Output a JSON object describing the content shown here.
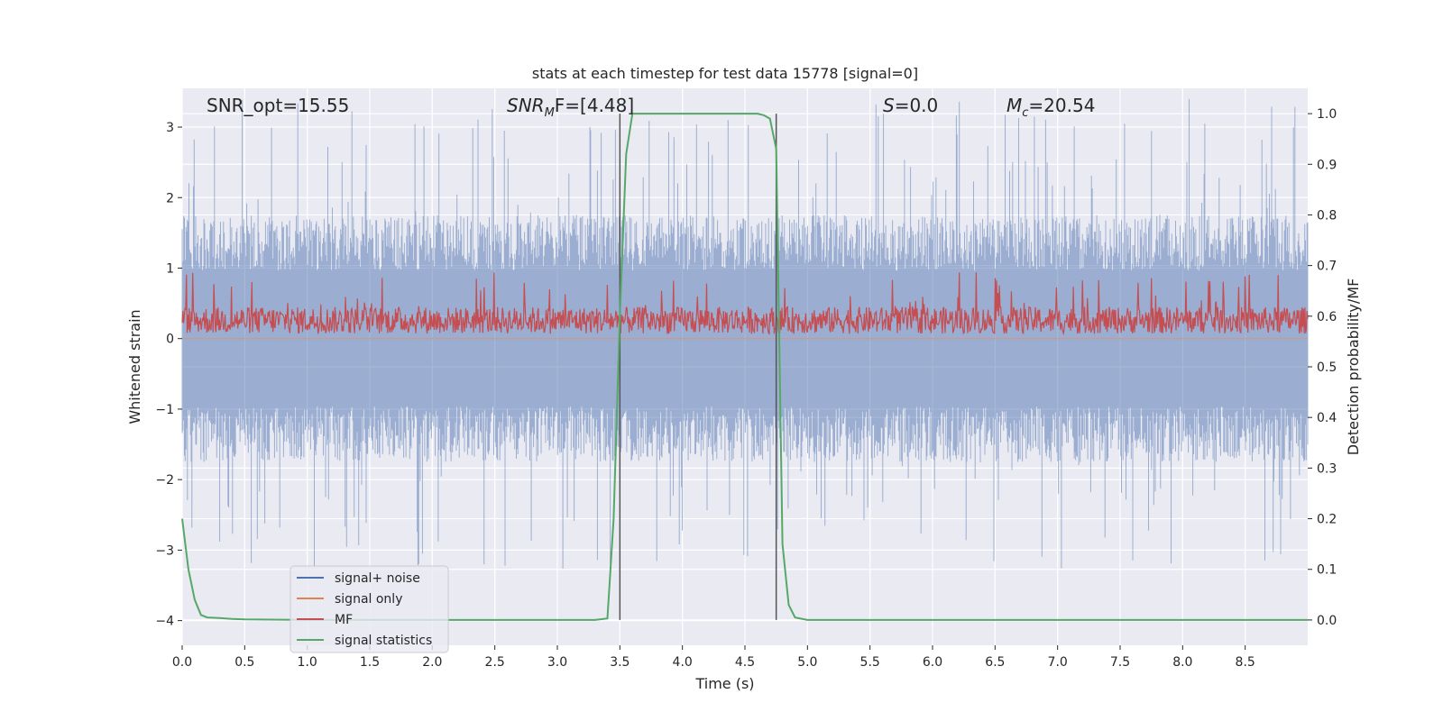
{
  "chart_data": {
    "type": "line",
    "title": "stats at each timestep for test data 15778 [signal=0]",
    "xlabel": "Time (s)",
    "ylabel": "Whitened strain",
    "ylabel_right": "Detection probability/MF",
    "xlim": [
      0.0,
      9.0
    ],
    "ylim": [
      -4.35,
      3.55
    ],
    "ylim_right": [
      -0.05,
      1.05
    ],
    "x_ticks": [
      "0.0",
      "0.5",
      "1.0",
      "1.5",
      "2.0",
      "2.5",
      "3.0",
      "3.5",
      "4.0",
      "4.5",
      "5.0",
      "5.5",
      "6.0",
      "6.5",
      "7.0",
      "7.5",
      "8.0",
      "8.5"
    ],
    "y_ticks": [
      "3",
      "2",
      "1",
      "0",
      "−1",
      "−2",
      "−3",
      "−4"
    ],
    "y_right_ticks": [
      "1.0",
      "0.9",
      "0.8",
      "0.7",
      "0.6",
      "0.5",
      "0.4",
      "0.3",
      "0.2",
      "0.1",
      "0.0"
    ],
    "grid": true,
    "legend_placement": "lower-left",
    "annotations": {
      "snr_opt": "SNR_opt=15.55",
      "snr_mf_sym": "SNR",
      "snr_mf_sub": "M",
      "snr_mf_rest": "F=[4.48]",
      "s_sym": "S",
      "s_rest": "=0.0",
      "mc_sym": "M",
      "mc_sub": "c",
      "mc_rest": "=20.54"
    },
    "vlines_x": [
      3.5,
      4.75
    ],
    "series": [
      {
        "name": "signal+ noise",
        "color": "#4c72b0",
        "axis": "left",
        "kind": "noise",
        "amplitude_min": -3.3,
        "amplitude_max": 3.4,
        "typical_band": [
          -1.75,
          1.75
        ]
      },
      {
        "name": "signal only",
        "color": "#dd8452",
        "axis": "left",
        "kind": "flat",
        "value": 0
      },
      {
        "name": "MF",
        "color": "#c44e52",
        "axis": "left",
        "kind": "mf",
        "baseline": 0.0,
        "typical_high": 0.45,
        "peak": 0.95
      },
      {
        "name": "signal statistics",
        "color": "#55a868",
        "axis": "right",
        "kind": "curve",
        "x": [
          0.0,
          0.05,
          0.1,
          0.15,
          0.2,
          0.3,
          0.4,
          0.5,
          1.0,
          2.0,
          3.0,
          3.3,
          3.4,
          3.45,
          3.5,
          3.55,
          3.6,
          3.65,
          4.0,
          4.5,
          4.6,
          4.65,
          4.7,
          4.75,
          4.8,
          4.85,
          4.9,
          5.0,
          6.0,
          7.0,
          8.0,
          9.0
        ],
        "y": [
          0.2,
          0.1,
          0.04,
          0.01,
          0.005,
          0.004,
          0.002,
          0.001,
          0.0,
          0.0,
          0.0,
          0.0,
          0.003,
          0.2,
          0.6,
          0.92,
          1.0,
          1.0,
          1.0,
          1.0,
          1.0,
          0.997,
          0.99,
          0.93,
          0.15,
          0.03,
          0.005,
          0.0,
          0.0,
          0.0,
          0.0,
          0.0
        ]
      }
    ]
  }
}
